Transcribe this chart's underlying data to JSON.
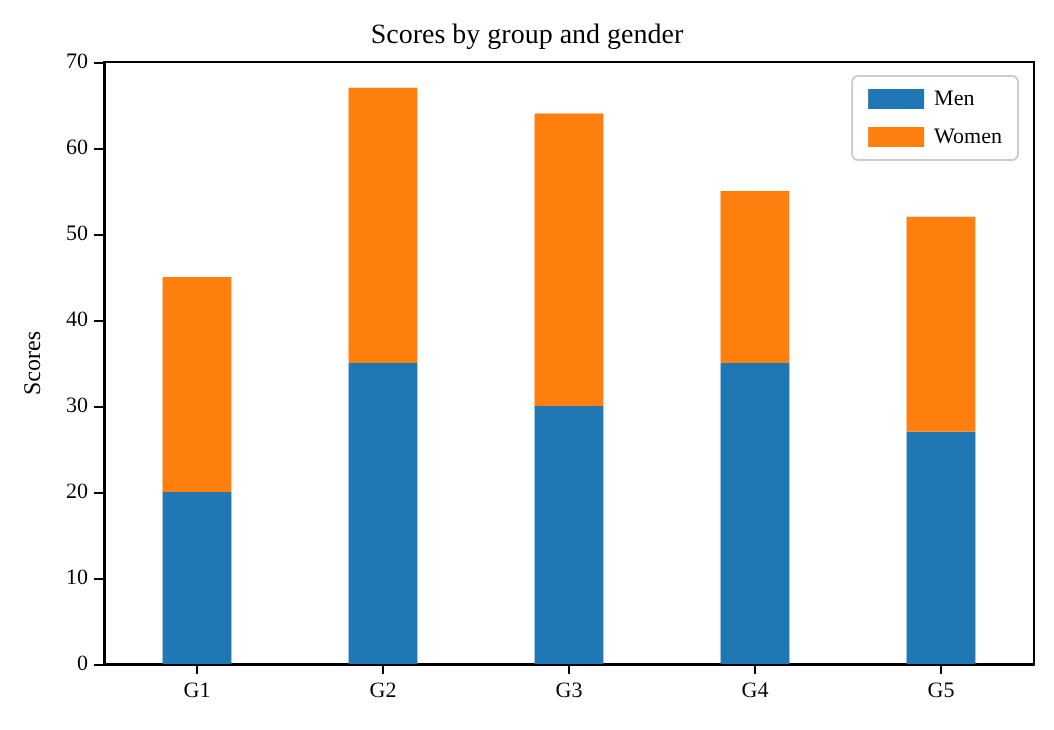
{
  "chart_data": {
    "type": "bar",
    "title": "Scores by group and gender",
    "ylabel": "Scores",
    "categories": [
      "G1",
      "G2",
      "G3",
      "G4",
      "G5"
    ],
    "stacked": true,
    "series": [
      {
        "name": "Men",
        "color": "#1f77b4",
        "values": [
          20,
          35,
          30,
          35,
          27
        ]
      },
      {
        "name": "Women",
        "color": "#ff7f0e",
        "values": [
          25,
          32,
          34,
          20,
          25
        ]
      }
    ],
    "ylim": [
      0,
      70
    ],
    "yticks": [
      0,
      10,
      20,
      30,
      40,
      50,
      60,
      70
    ],
    "grid": false,
    "legend": "top right"
  }
}
